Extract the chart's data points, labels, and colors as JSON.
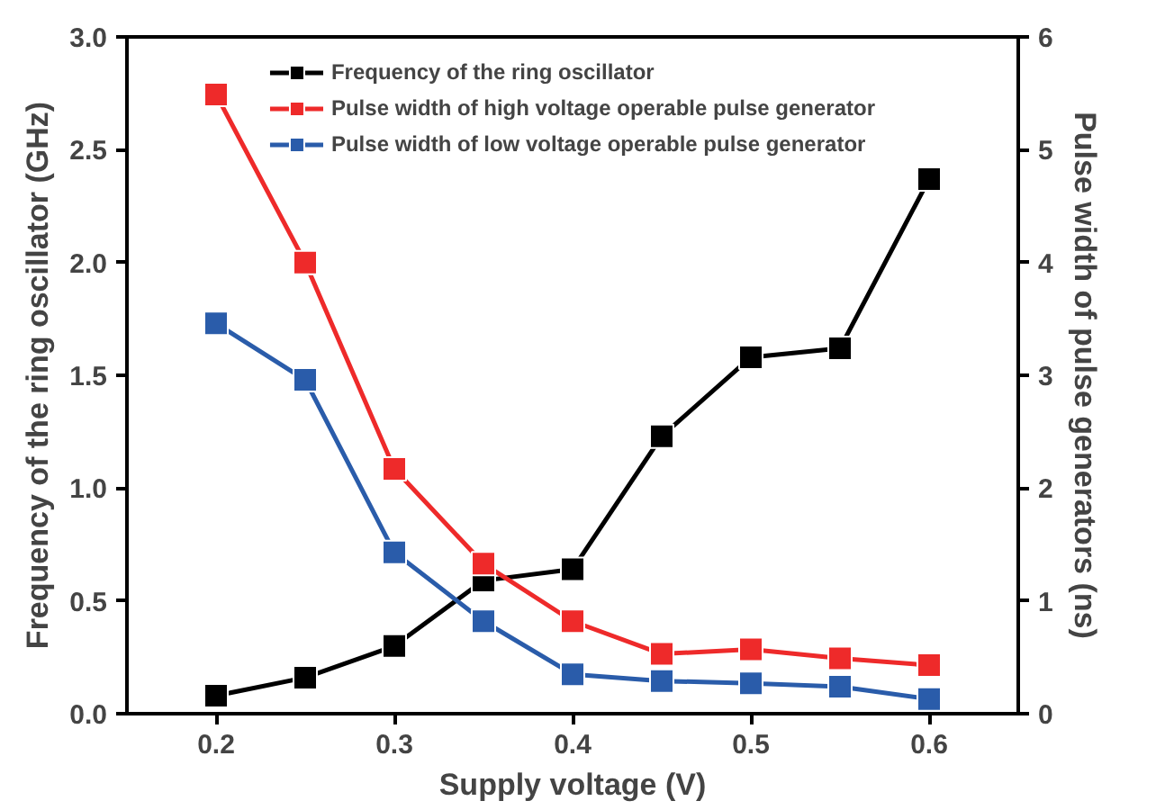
{
  "chart_data": {
    "type": "line",
    "xlabel": "Supply voltage (V)",
    "ylabel": "Frequency of the ring oscillator (GHz)",
    "y2label": "Pulse width of pulse generators (ns)",
    "x": [
      0.2,
      0.25,
      0.3,
      0.35,
      0.4,
      0.45,
      0.5,
      0.55,
      0.6
    ],
    "xlim": [
      0.15,
      0.65
    ],
    "xticks": [
      0.2,
      0.3,
      0.4,
      0.5,
      0.6
    ],
    "ylim": [
      0,
      3
    ],
    "yticks": [
      {
        "value": 0,
        "label": "0.0"
      },
      0.5,
      {
        "value": 1,
        "label": "1.0"
      },
      1.5,
      {
        "value": 2,
        "label": "2.0"
      },
      2.5,
      {
        "value": 3,
        "label": "3.0"
      }
    ],
    "y2lim": [
      0,
      6
    ],
    "y2ticks": [
      0,
      1,
      2,
      3,
      4,
      5,
      6
    ],
    "series": [
      {
        "name": "Frequency of the ring oscillator",
        "color": "#000000",
        "values": [
          0.08,
          0.16,
          0.3,
          0.59,
          0.64,
          1.23,
          1.58,
          1.62,
          2.37
        ]
      },
      {
        "name": "Pulse width of high voltage operable pulse generator",
        "color": "#ee2a2a",
        "axis": "y2",
        "values": [
          5.49,
          4.0,
          2.17,
          1.33,
          0.82,
          0.53,
          0.57,
          0.49,
          0.43
        ]
      },
      {
        "name": "Pulse width of low voltage operable pulse generator",
        "color": "#2a5caa",
        "axis": "y2",
        "values": [
          3.46,
          2.96,
          1.43,
          0.82,
          0.35,
          0.29,
          0.27,
          0.24,
          0.13
        ]
      }
    ],
    "marker": "square",
    "line_style": "solid",
    "legend": "top",
    "grid": false
  }
}
